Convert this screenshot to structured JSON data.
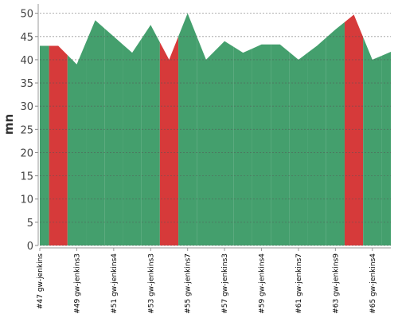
{
  "chart_data": {
    "type": "area",
    "ylabel": "mn",
    "categories": [
      "#47 gw-jenkins",
      null,
      "#49 gw-jenkins3",
      null,
      "#51 gw-jenkins4",
      null,
      "#53 gw-jenkins3",
      null,
      "#55 gw-jenkins7",
      null,
      "#57 gw-jenkins3",
      null,
      "#59 gw-jenkins4",
      null,
      "#61 gw-jenkins7",
      null,
      "#63 gw-jenkins9",
      null,
      "#65 gw-jenkins4",
      null
    ],
    "values": [
      43,
      43,
      39,
      48.5,
      45,
      41.5,
      47.5,
      40,
      50,
      40,
      44,
      41.5,
      43.3,
      43.3,
      40,
      43,
      46.5,
      49.7,
      40,
      41.7
    ],
    "colors": [
      "#449f6d",
      "#d63a3a",
      "#449f6d",
      "#449f6d",
      "#449f6d",
      "#449f6d",
      "#449f6d",
      "#d63a3a",
      "#449f6d",
      "#449f6d",
      "#449f6d",
      "#449f6d",
      "#449f6d",
      "#449f6d",
      "#449f6d",
      "#449f6d",
      "#449f6d",
      "#d63a3a",
      "#449f6d",
      "#449f6d"
    ],
    "ylim": [
      0,
      52
    ],
    "yticks": [
      0,
      5,
      10,
      15,
      20,
      25,
      30,
      35,
      40,
      45,
      50
    ],
    "grid": true
  }
}
